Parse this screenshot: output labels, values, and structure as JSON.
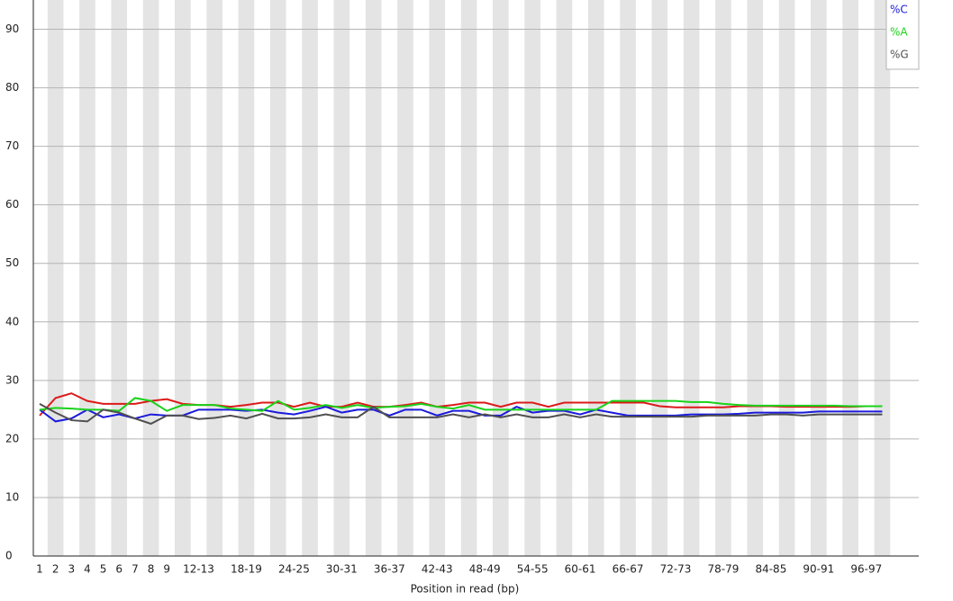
{
  "chart_data": {
    "type": "line",
    "x_label": "Position in read (bp)",
    "categories": [
      "1",
      "2",
      "3",
      "4",
      "5",
      "6",
      "7",
      "8",
      "9",
      null,
      "12-13",
      null,
      null,
      "18-19",
      null,
      null,
      "24-25",
      null,
      null,
      "30-31",
      null,
      null,
      "36-37",
      null,
      null,
      "42-43",
      null,
      null,
      "48-49",
      null,
      null,
      "54-55",
      null,
      null,
      "60-61",
      null,
      null,
      "66-67",
      null,
      null,
      "72-73",
      null,
      null,
      "78-79",
      null,
      null,
      "84-85",
      null,
      null,
      "90-91",
      null,
      null,
      "96-97",
      null
    ],
    "series": [
      {
        "color": "#dc1a1a",
        "values": [
          24,
          27,
          27.8,
          26.5,
          26,
          26,
          26,
          26.5,
          26.8,
          26,
          25.8,
          25.8,
          25.5,
          25.8,
          26.2,
          26.2,
          25.5,
          26.2,
          25.5,
          25.5,
          26.2,
          25.5,
          25.5,
          25.8,
          26.2,
          25.5,
          25.8,
          26.2,
          26.2,
          25.5,
          26.2,
          26.2,
          25.5,
          26.2,
          26.2,
          26.2,
          26.2,
          26.2,
          26.2,
          25.6,
          25.4,
          25.4,
          25.4,
          25.4,
          25.6,
          25.6,
          25.6,
          25.5,
          25.5,
          25.5,
          25.5,
          25.5,
          25.6,
          25.6
        ]
      },
      {
        "name": "%C",
        "color": "#1a1adc",
        "values": [
          25,
          23,
          23.5,
          25,
          23.7,
          24.2,
          23.5,
          24.2,
          24,
          24,
          25,
          25,
          25,
          24.8,
          25,
          24.5,
          24.2,
          24.8,
          25.5,
          24.5,
          25,
          25,
          24,
          25,
          25,
          24,
          24.8,
          24.8,
          24,
          24,
          25.5,
          24.5,
          24.8,
          24.8,
          24.2,
          25,
          24.5,
          24,
          24,
          24,
          24,
          24.2,
          24.2,
          24.2,
          24.3,
          24.5,
          24.5,
          24.5,
          24.5,
          24.7,
          24.7,
          24.7,
          24.7,
          24.7
        ]
      },
      {
        "name": "%A",
        "color": "#1ad21a",
        "values": [
          25,
          25.3,
          25.2,
          25,
          25,
          24.8,
          27,
          26.5,
          24.8,
          25.8,
          25.8,
          25.8,
          25.2,
          25,
          24.8,
          26.5,
          25,
          25.3,
          25.8,
          25.3,
          25.8,
          25.3,
          25.5,
          25.6,
          26,
          25.5,
          25.2,
          25.8,
          25,
          25,
          25,
          25,
          25,
          25,
          25,
          25,
          26.5,
          26.5,
          26.5,
          26.5,
          26.5,
          26.3,
          26.3,
          26,
          25.8,
          25.7,
          25.7,
          25.7,
          25.7,
          25.7,
          25.7,
          25.6,
          25.6,
          25.6
        ]
      },
      {
        "name": "%G",
        "color": "#505050",
        "values": [
          26,
          24.5,
          23.2,
          23,
          25,
          24.5,
          23.5,
          22.6,
          24,
          24,
          23.4,
          23.6,
          24,
          23.5,
          24.3,
          23.5,
          23.5,
          23.7,
          24.2,
          23.7,
          23.7,
          25.5,
          23.7,
          23.7,
          23.7,
          23.7,
          24.2,
          23.7,
          24.2,
          23.7,
          24.2,
          23.7,
          23.7,
          24.2,
          23.7,
          24.2,
          23.8,
          23.8,
          23.8,
          23.8,
          23.8,
          23.8,
          24,
          24,
          24,
          24,
          24.2,
          24.2,
          24,
          24.2,
          24.2,
          24.2,
          24.2,
          24.2
        ]
      }
    ],
    "ylim": [
      0,
      95
    ],
    "yticks": [
      0,
      10,
      20,
      30,
      40,
      50,
      60,
      70,
      80,
      90
    ],
    "grid": true,
    "legend": "top-right"
  }
}
